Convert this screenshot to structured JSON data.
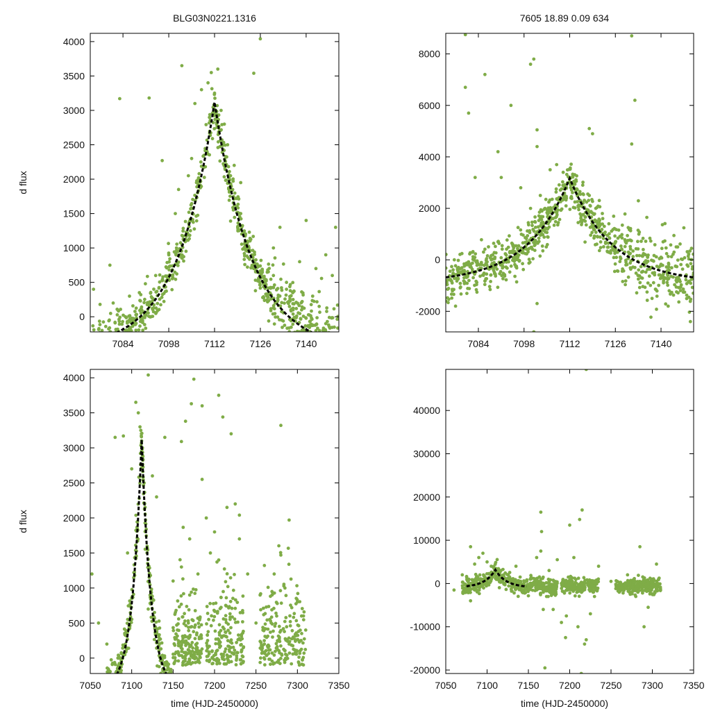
{
  "colors": {
    "points": "#7fac47",
    "model": "#000000",
    "axes": "#000000"
  },
  "chart_data": [
    {
      "type": "scatter",
      "panel": "top-left",
      "title": "BLG03N0221.1316",
      "xlabel": "",
      "ylabel": "d flux",
      "xlim": [
        7074,
        7150
      ],
      "ylim": [
        -220,
        4120
      ],
      "xticks": [
        7084,
        7098,
        7112,
        7126,
        7140
      ],
      "yticks": [
        0,
        500,
        1000,
        1500,
        2000,
        2500,
        3000,
        3500,
        4000
      ],
      "model": {
        "t0": 7112,
        "peak": 3120,
        "base": -500,
        "tau": 11.5
      },
      "series": [
        {
          "name": "data",
          "x": [
            7075,
            7077,
            7080,
            7083,
            7086,
            7089,
            7092,
            7094,
            7096,
            7098,
            7100,
            7102,
            7104,
            7106,
            7108,
            7110,
            7111,
            7112,
            7113,
            7114,
            7115,
            7116,
            7118,
            7120,
            7122,
            7124,
            7126,
            7128,
            7130,
            7132,
            7134,
            7136,
            7138,
            7140,
            7142,
            7144,
            7146,
            7148,
            7149,
            7081,
            7093,
            7101,
            7105,
            7120,
            7124,
            7130,
            7134,
            7143,
            7146,
            7136
          ],
          "y": [
            400,
            180,
            750,
            3170,
            300,
            350,
            3180,
            600,
            2270,
            900,
            1500,
            3650,
            2050,
            3100,
            3300,
            3400,
            3550,
            3250,
            3600,
            3000,
            2800,
            2500,
            2200,
            1500,
            1100,
            700,
            4040,
            300,
            600,
            1300,
            500,
            100,
            800,
            1400,
            300,
            150,
            900,
            600,
            1300,
            200,
            120,
            1850,
            2300,
            1950,
            3540,
            1000,
            400,
            700,
            -100,
            250
          ]
        }
      ]
    },
    {
      "type": "scatter",
      "panel": "top-right",
      "title": "7605  18.89  0.09  634",
      "xlabel": "",
      "ylabel": "",
      "xlim": [
        7074,
        7150
      ],
      "ylim": [
        -2800,
        8800
      ],
      "xticks": [
        7084,
        7098,
        7112,
        7126,
        7140
      ],
      "yticks": [
        -2000,
        0,
        2000,
        4000,
        6000,
        8000
      ],
      "model": {
        "t0": 7112,
        "peak": 3170,
        "base": -900,
        "tau": 13
      },
      "series": [
        {
          "name": "data",
          "x": [
            7077,
            7080,
            7081,
            7083,
            7086,
            7090,
            7091,
            7094,
            7097,
            7100,
            7101,
            7102,
            7103,
            7106,
            7108,
            7110,
            7112,
            7114,
            7116,
            7118,
            7120,
            7122,
            7124,
            7126,
            7128,
            7130,
            7132,
            7134,
            7136,
            7138,
            7140,
            7142,
            7144,
            7146,
            7148,
            7149,
            7080,
            7102,
            7102,
            7118,
            7119,
            7131,
            7131,
            7101,
            7132,
            7090,
            7100
          ],
          "y": [
            -1800,
            8750,
            5700,
            3200,
            7200,
            4200,
            3200,
            6000,
            2800,
            7600,
            7800,
            5050,
            2500,
            3500,
            3700,
            3400,
            3150,
            3050,
            2900,
            2500,
            2000,
            1800,
            1400,
            700,
            400,
            300,
            -300,
            -700,
            -900,
            -500,
            100,
            -300,
            300,
            -600,
            -200,
            -2400,
            6700,
            4400,
            -1700,
            5100,
            4900,
            4500,
            8700,
            -2800,
            6200,
            700,
            2000
          ]
        }
      ]
    },
    {
      "type": "scatter",
      "panel": "bottom-left",
      "title": "",
      "xlabel": "time (HJD-2450000)",
      "ylabel": "d flux",
      "xlim": [
        7050,
        7350
      ],
      "ylim": [
        -220,
        4120
      ],
      "xticks": [
        7050,
        7100,
        7150,
        7200,
        7250,
        7300,
        7350
      ],
      "yticks": [
        0,
        500,
        1000,
        1500,
        2000,
        2500,
        3000,
        3500,
        4000
      ],
      "model": {
        "t0": 7112,
        "peak": 3120,
        "base": -500,
        "tau": 11.5,
        "x_end": 7150
      },
      "series": [
        {
          "name": "data",
          "x": [
            7052,
            7060,
            7070,
            7080,
            7090,
            7095,
            7100,
            7105,
            7108,
            7110,
            7111,
            7112,
            7113,
            7115,
            7120,
            7125,
            7130,
            7140,
            7150,
            7160,
            7165,
            7170,
            7172,
            7175,
            7180,
            7185,
            7190,
            7195,
            7200,
            7205,
            7210,
            7215,
            7220,
            7225,
            7230,
            7240,
            7250,
            7255,
            7260,
            7270,
            7275,
            7280,
            7285,
            7290,
            7295,
            7300,
            7305,
            7310,
            7120,
            7170,
            7205,
            7280,
            7290,
            7160,
            7185,
            7230
          ],
          "y": [
            1200,
            500,
            200,
            3150,
            3170,
            1500,
            2700,
            3650,
            3500,
            3300,
            3250,
            3100,
            3000,
            2500,
            4040,
            2600,
            2300,
            3150,
            1100,
            1300,
            3380,
            1700,
            3630,
            3980,
            1200,
            3600,
            2000,
            1500,
            1800,
            3750,
            3440,
            2150,
            3200,
            2200,
            1700,
            1200,
            500,
            900,
            250,
            300,
            600,
            3320,
            1000,
            1970,
            300,
            800,
            600,
            400,
            700,
            900,
            1400,
            1470,
            200,
            3090,
            2550,
            2040
          ]
        }
      ]
    },
    {
      "type": "scatter",
      "panel": "bottom-right",
      "title": "",
      "xlabel": "time (HJD-2450000)",
      "ylabel": "",
      "xlim": [
        7050,
        7350
      ],
      "ylim": [
        -20800,
        49500
      ],
      "xticks": [
        7050,
        7100,
        7150,
        7200,
        7250,
        7300,
        7350
      ],
      "yticks": [
        -20000,
        -10000,
        0,
        10000,
        20000,
        30000,
        40000
      ],
      "model": {
        "t0": 7110,
        "peak": 3170,
        "base": -900,
        "tau": 13,
        "x_start": 7075,
        "x_end": 7148
      },
      "series": [
        {
          "name": "data",
          "x": [
            7060,
            7070,
            7080,
            7085,
            7090,
            7095,
            7100,
            7105,
            7110,
            7112,
            7115,
            7120,
            7125,
            7130,
            7135,
            7140,
            7150,
            7160,
            7165,
            7166,
            7168,
            7170,
            7172,
            7175,
            7180,
            7185,
            7190,
            7195,
            7200,
            7205,
            7210,
            7212,
            7215,
            7218,
            7220,
            7225,
            7230,
            7235,
            7250,
            7260,
            7270,
            7280,
            7285,
            7290,
            7295,
            7300,
            7305,
            7310,
            7080,
            7165,
            7196,
            7214,
            7220
          ],
          "y": [
            -1500,
            2000,
            8500,
            4500,
            6000,
            7000,
            5000,
            4000,
            3100,
            3200,
            2800,
            2000,
            1200,
            500,
            4000,
            1500,
            -500,
            6000,
            16500,
            12000,
            -6000,
            -19500,
            -3000,
            3000,
            -6000,
            5500,
            -9000,
            -12500,
            13500,
            6000,
            -10000,
            14800,
            17000,
            -14000,
            49500,
            -7000,
            -3000,
            4000,
            500,
            -2000,
            2000,
            -3000,
            8500,
            -10000,
            -5500,
            1000,
            4500,
            -1500,
            -4000,
            7500,
            -7500,
            -20800,
            -13000
          ]
        }
      ]
    }
  ]
}
